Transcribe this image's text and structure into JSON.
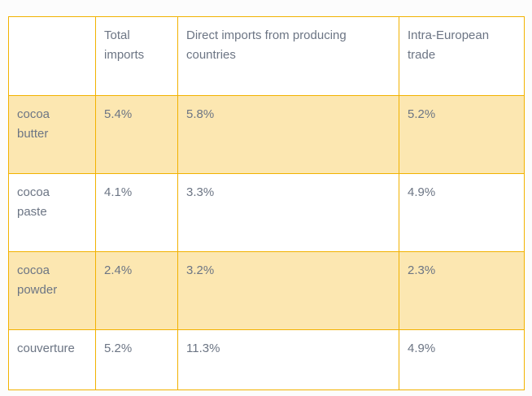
{
  "theme": {
    "border_color": "#F2B200",
    "highlight_color": "#FCE7B1",
    "text_color": "#6C7584",
    "page_background": "#FCFCFC",
    "cell_background": "#FFFFFF"
  },
  "table": {
    "columns": [
      {
        "label": ""
      },
      {
        "label": "Total imports"
      },
      {
        "label": "Direct imports from producing countries"
      },
      {
        "label": "Intra-European trade"
      }
    ],
    "rows": [
      {
        "label": "cocoa butter",
        "total_imports": "5.4%",
        "direct_imports": "5.8%",
        "intra_european": "5.2%",
        "highlighted": true
      },
      {
        "label": "cocoa paste",
        "total_imports": "4.1%",
        "direct_imports": "3.3%",
        "intra_european": "4.9%",
        "highlighted": false
      },
      {
        "label": "cocoa powder",
        "total_imports": "2.4%",
        "direct_imports": "3.2%",
        "intra_european": "2.3%",
        "highlighted": true
      },
      {
        "label": "couverture",
        "total_imports": "5.2%",
        "direct_imports": "11.3%",
        "intra_european": "4.9%",
        "highlighted": false
      }
    ]
  },
  "chart_data": {
    "type": "table",
    "title": "",
    "categories": [
      "cocoa butter",
      "cocoa paste",
      "cocoa powder",
      "couverture"
    ],
    "series": [
      {
        "name": "Total imports",
        "values": [
          "5.4%",
          "4.1%",
          "2.4%",
          "5.2%"
        ]
      },
      {
        "name": "Direct imports from producing countries",
        "values": [
          "5.8%",
          "3.3%",
          "3.2%",
          "11.3%"
        ]
      },
      {
        "name": "Intra-European trade",
        "values": [
          "5.2%",
          "4.9%",
          "2.3%",
          "4.9%"
        ]
      }
    ]
  }
}
